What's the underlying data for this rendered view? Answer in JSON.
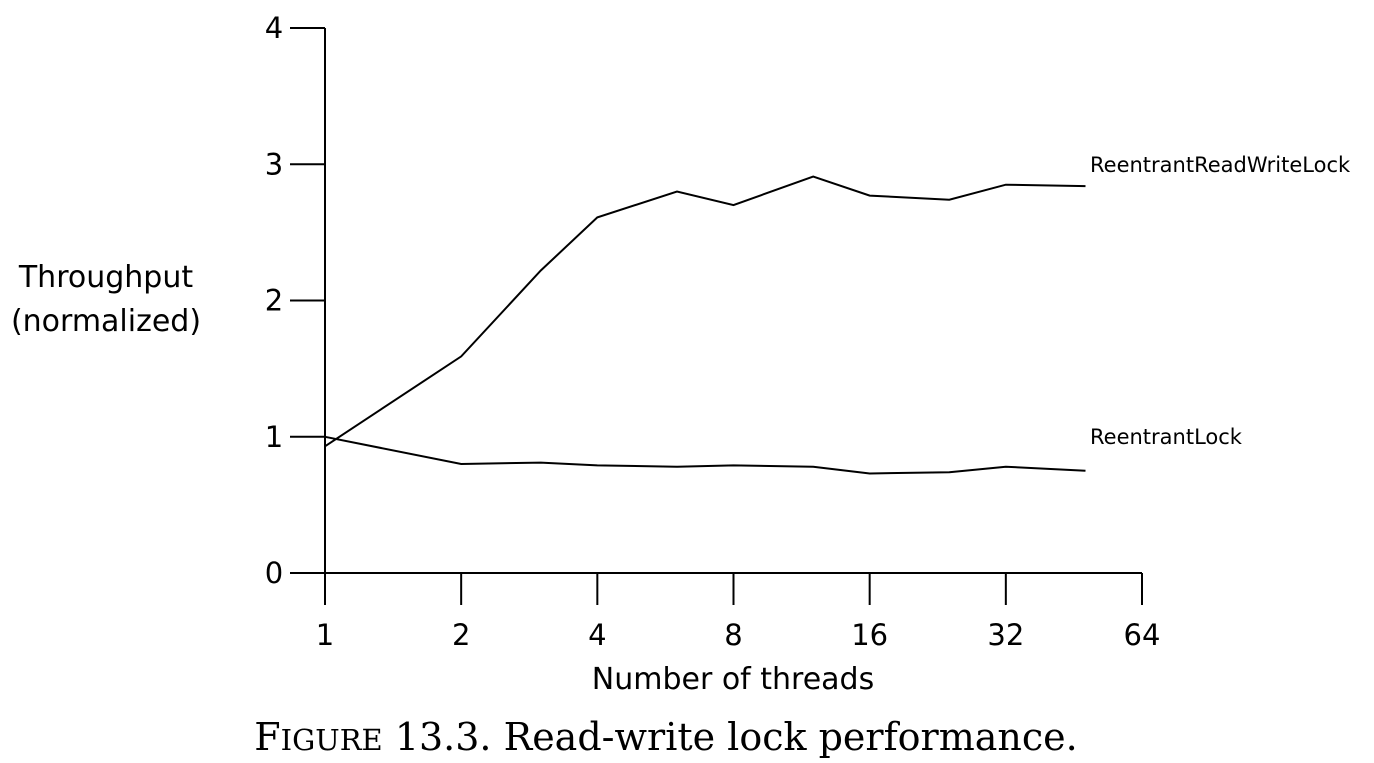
{
  "chart_data": {
    "type": "line",
    "xscale": "log2",
    "x_ticks": [
      1,
      2,
      4,
      8,
      16,
      32,
      64
    ],
    "y_ticks": [
      0,
      1,
      2,
      3,
      4
    ],
    "xlim": [
      1,
      64
    ],
    "ylim": [
      0,
      4
    ],
    "xlabel": "Number of threads",
    "ylabel_lines": [
      "Throughput",
      "(normalized)"
    ],
    "grid": false,
    "legend": "inline-right",
    "series": [
      {
        "name": "ReentrantReadWriteLock",
        "x": [
          1,
          2,
          3,
          4,
          6,
          8,
          12,
          16,
          24,
          32,
          48
        ],
        "y": [
          0.93,
          1.59,
          2.22,
          2.61,
          2.8,
          2.7,
          2.91,
          2.77,
          2.74,
          2.85,
          2.84
        ]
      },
      {
        "name": "ReentrantLock",
        "x": [
          1,
          2,
          3,
          4,
          6,
          8,
          12,
          16,
          24,
          32,
          48
        ],
        "y": [
          1.0,
          0.8,
          0.81,
          0.79,
          0.78,
          0.79,
          0.78,
          0.73,
          0.74,
          0.78,
          0.75
        ]
      }
    ]
  },
  "caption": {
    "figure_word": "Figure",
    "text": " 13.3. Read-write lock performance."
  }
}
